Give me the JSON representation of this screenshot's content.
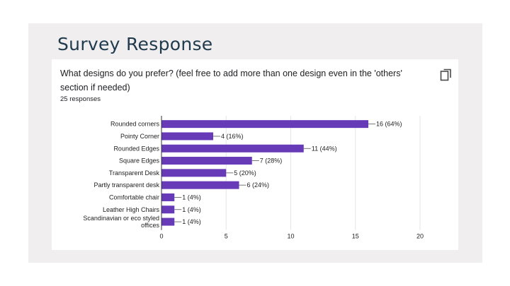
{
  "header": {
    "title": "Survey Response"
  },
  "question": {
    "text": "What designs do you prefer? (feel free to add more than one design even in the 'others' section if needed)",
    "responses": "25 responses"
  },
  "icons": {
    "copy": "copy-icon"
  },
  "colors": {
    "bar": "#673ab7",
    "title": "#1f3a4d",
    "grid": "#e6e6e6"
  },
  "chart_data": {
    "type": "bar",
    "orientation": "horizontal",
    "title": "",
    "xlabel": "",
    "ylabel": "",
    "categories": [
      "Rounded corners",
      "Pointy Corner",
      "Rounded Edges",
      "Square Edges",
      "Transparent Desk",
      "Partly transparent desk",
      "Comfortable chair",
      "Leather High Chairs",
      "Scandinavian or eco styled offices"
    ],
    "values": [
      16,
      4,
      11,
      7,
      5,
      6,
      1,
      1,
      1
    ],
    "value_labels": [
      "16 (64%)",
      "4 (16%)",
      "11 (44%)",
      "7 (28%)",
      "5 (20%)",
      "6 (24%)",
      "1 (4%)",
      "1 (4%)",
      "1 (4%)"
    ],
    "xlim": [
      0,
      20
    ],
    "xticks": [
      0,
      5,
      10,
      15,
      20
    ],
    "grid": true
  }
}
